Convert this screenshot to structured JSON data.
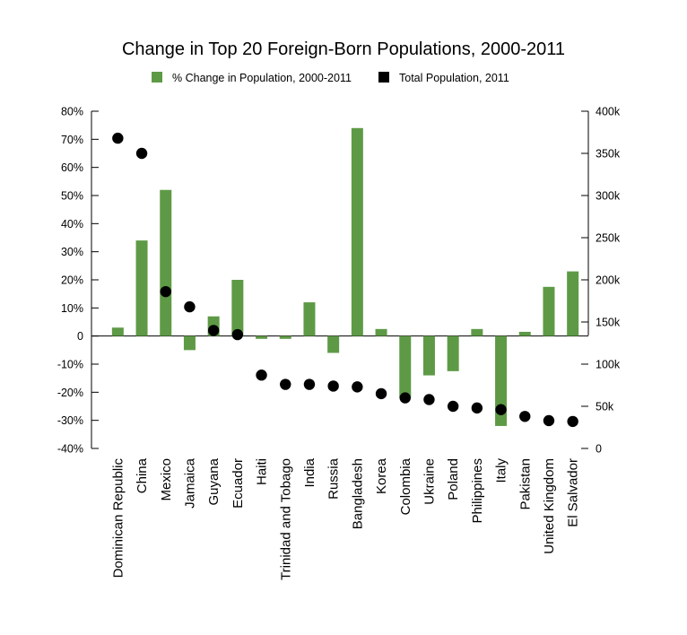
{
  "chart_data": {
    "type": "bar",
    "title": "Change in Top 20 Foreign-Born Populations, 2000-2011",
    "legend": {
      "placement": "top-center",
      "entries": [
        {
          "label": "% Change in Population, 2000-2011",
          "marker": "square",
          "color": "#5e9a46"
        },
        {
          "label": "Total Population, 2011",
          "marker": "square",
          "color": "#000000"
        }
      ]
    },
    "categories": [
      "Dominican Republic",
      "China",
      "Mexico",
      "Jamaica",
      "Guyana",
      "Ecuador",
      "Haiti",
      "Trinidad and Tobago",
      "India",
      "Russia",
      "Bangladesh",
      "Korea",
      "Colombia",
      "Ukraine",
      "Poland",
      "Philippines",
      "Italy",
      "Pakistan",
      "United Kingdom",
      "El Salvador"
    ],
    "series": [
      {
        "name": "% Change in Population, 2000-2011",
        "type": "bar",
        "axis": "left",
        "color": "#5e9a46",
        "values": [
          3,
          34,
          52,
          -5,
          7,
          20,
          -1,
          -1,
          12,
          -6,
          74,
          2.5,
          -22,
          -14,
          -12.5,
          2.5,
          -32,
          1.5,
          17.5,
          23
        ]
      },
      {
        "name": "Total Population, 2011",
        "type": "scatter",
        "axis": "right",
        "color": "#000000",
        "values": [
          368000,
          350000,
          186000,
          168000,
          140000,
          135000,
          87000,
          76000,
          76000,
          74000,
          73000,
          65000,
          60000,
          58000,
          50000,
          48000,
          46000,
          38000,
          33000,
          32000
        ]
      }
    ],
    "y_left": {
      "ylim": [
        -40,
        80
      ],
      "ticks": [
        80,
        70,
        60,
        50,
        40,
        30,
        20,
        10,
        0,
        -10,
        -20,
        -30,
        -40
      ],
      "tick_labels": [
        "80%",
        "70%",
        "60%",
        "50%",
        "40%",
        "30%",
        "20%",
        "10%",
        "0",
        "-10%",
        "-20%",
        "-30%",
        "-40%"
      ]
    },
    "y_right": {
      "ylim": [
        0,
        400000
      ],
      "ticks": [
        400000,
        350000,
        300000,
        250000,
        200000,
        150000,
        100000,
        50000,
        0
      ],
      "tick_labels": [
        "400k",
        "350k",
        "300k",
        "250k",
        "200k",
        "150k",
        "100k",
        "50k",
        "0"
      ]
    },
    "grid": false
  }
}
